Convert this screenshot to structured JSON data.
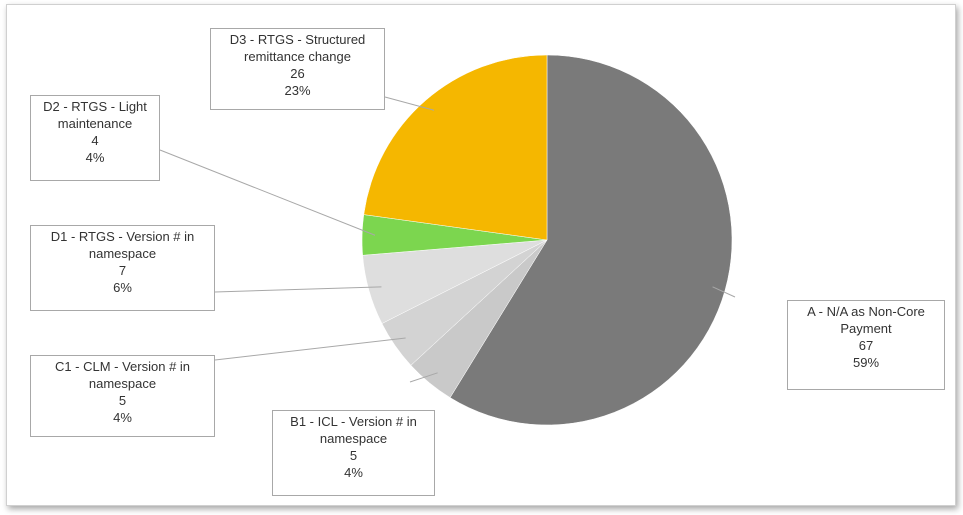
{
  "chart_data": {
    "type": "pie",
    "categories": [
      "A - N/A as Non-Core Payment",
      "B1 - ICL - Version # in namespace",
      "C1 - CLM -  Version # in namespace",
      "D1 - RTGS - Version # in namespace",
      "D2 - RTGS - Light maintenance",
      "D3 - RTGS - Structured remittance change"
    ],
    "values": [
      67,
      5,
      5,
      7,
      4,
      26
    ],
    "percent_labels": [
      "59%",
      "4%",
      "4%",
      "6%",
      "4%",
      "23%"
    ],
    "colors": [
      "#7a7a7a",
      "#c9c9c9",
      "#d3d3d3",
      "#dedede",
      "#7cd64f",
      "#f5b700"
    ]
  }
}
